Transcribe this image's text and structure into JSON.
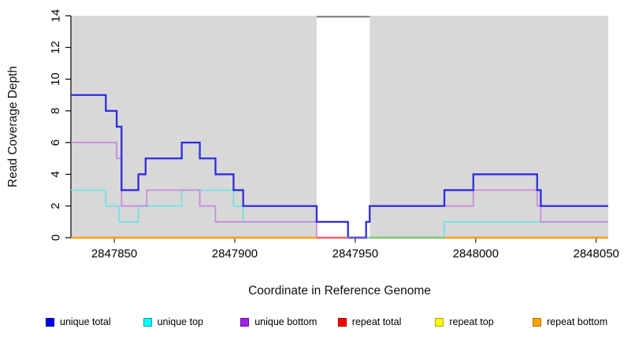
{
  "chart_data": {
    "type": "line",
    "subtype": "step",
    "title": "",
    "xlabel": "Coordinate in Reference Genome",
    "ylabel": "Read Coverage Depth",
    "xlim": [
      2847832,
      2848055
    ],
    "ylim": [
      0,
      14
    ],
    "xticks": [
      2847850,
      2847900,
      2847950,
      2848000,
      2848050
    ],
    "yticks": [
      0,
      2,
      4,
      6,
      8,
      10,
      12,
      14
    ],
    "grid": false,
    "legend_position": "bottom",
    "plot_background": "#d8d8d8",
    "highlight_region": {
      "from": 2847934,
      "to": 2847956,
      "color": "#ffffff",
      "top_edge_color": "#8a8a8a"
    },
    "series": [
      {
        "name": "repeat total",
        "line_color": "#e02020",
        "legend_color": "#ff0000",
        "legend_border": "#a80000",
        "width": 2.0,
        "values": [
          [
            2847832,
            0
          ],
          [
            2848055,
            0
          ]
        ]
      },
      {
        "name": "repeat top",
        "line_color": "#ffff00",
        "legend_color": "#ffff00",
        "legend_border": "#a8a800",
        "width": 2.0,
        "values": [
          [
            2847832,
            0
          ],
          [
            2848055,
            0
          ]
        ]
      },
      {
        "name": "repeat bottom",
        "line_color": "#ffa014",
        "legend_color": "#ffa500",
        "legend_border": "#b06f00",
        "width": 2.4,
        "values": [
          [
            2847832,
            0
          ],
          [
            2848055,
            0
          ]
        ]
      },
      {
        "name": "unique top",
        "line_color": "#6fe0e6",
        "legend_color": "#00ffff",
        "legend_border": "#00a8a8",
        "width": 1.7,
        "values": [
          [
            2847832,
            3
          ],
          [
            2847846.5,
            2
          ],
          [
            2847852,
            1
          ],
          [
            2847860,
            2
          ],
          [
            2847878,
            3
          ],
          [
            2847899.5,
            2
          ],
          [
            2847903.5,
            1
          ],
          [
            2847947,
            0
          ],
          [
            2847987,
            1
          ],
          [
            2848055,
            1
          ]
        ]
      },
      {
        "name": "unique bottom",
        "line_color": "#c47fdf",
        "legend_color": "#a020f0",
        "legend_border": "#6a10a0",
        "width": 1.7,
        "values": [
          [
            2847832,
            6
          ],
          [
            2847851,
            5
          ],
          [
            2847853,
            2
          ],
          [
            2847863.5,
            3
          ],
          [
            2847885.5,
            2
          ],
          [
            2847892,
            1
          ],
          [
            2847934,
            0
          ],
          [
            2847954.5,
            1
          ],
          [
            2847956,
            2
          ],
          [
            2847999,
            3
          ],
          [
            2848025.5,
            2
          ],
          [
            2848027,
            1
          ],
          [
            2848055,
            1
          ]
        ]
      },
      {
        "name": "unique total",
        "line_color": "#2d2de0",
        "legend_color": "#0000ee",
        "legend_border": "#000090",
        "width": 2.3,
        "values": [
          [
            2847832,
            9
          ],
          [
            2847846.5,
            8
          ],
          [
            2847851,
            7
          ],
          [
            2847853,
            3
          ],
          [
            2847860,
            4
          ],
          [
            2847863,
            5
          ],
          [
            2847878,
            6
          ],
          [
            2847885.5,
            5
          ],
          [
            2847892,
            4
          ],
          [
            2847899.5,
            3
          ],
          [
            2847903.5,
            2
          ],
          [
            2847934,
            1
          ],
          [
            2847947,
            0
          ],
          [
            2847954.5,
            1
          ],
          [
            2847956,
            2
          ],
          [
            2847987,
            3
          ],
          [
            2847999,
            4
          ],
          [
            2848025.5,
            3
          ],
          [
            2848027,
            2
          ],
          [
            2848055,
            2
          ]
        ]
      }
    ],
    "legend_order": [
      "unique total",
      "unique top",
      "unique bottom",
      "repeat total",
      "repeat top",
      "repeat bottom"
    ],
    "zero_line_segments": [
      {
        "from": 2847934,
        "to": 2847947,
        "color": "#e8687c"
      },
      {
        "from": 2847947,
        "to": 2847954.5,
        "color": "#6356dd"
      },
      {
        "from": 2847956,
        "to": 2847987.3,
        "color": "#7cc97f"
      }
    ]
  }
}
